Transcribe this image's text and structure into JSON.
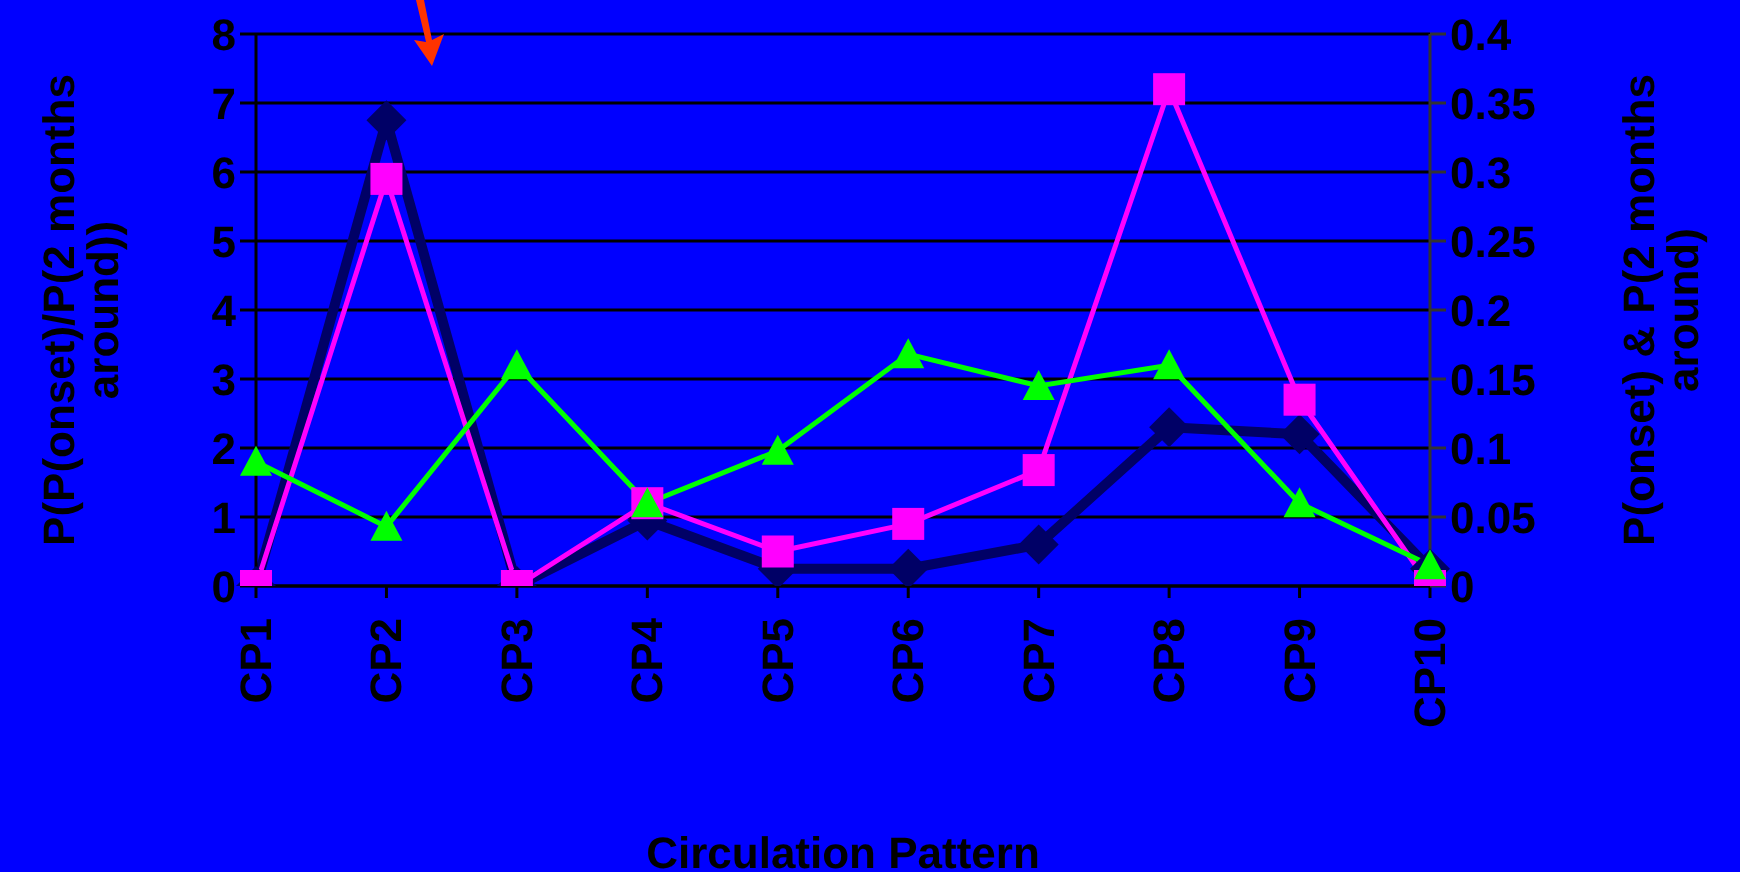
{
  "chart_data": {
    "type": "line",
    "xlabel": "Circulation Pattern",
    "ylabel": "P(P(onset)/P(2 months around))",
    "y2label": "P(onset) & P(2 months around)",
    "categories": [
      "CP1",
      "CP2",
      "CP3",
      "CP4",
      "CP5",
      "CP6",
      "CP7",
      "CP8",
      "CP9",
      "CP10"
    ],
    "series": [
      {
        "color": "#000066",
        "marker": "diamond",
        "values": [
          0,
          6.75,
          0,
          0.95,
          0.25,
          0.25,
          0.6,
          2.3,
          2.2,
          0.25
        ]
      },
      {
        "color": "#ff00ff",
        "marker": "square",
        "axis": "y2",
        "values": [
          0,
          0.295,
          0,
          0.06,
          0.025,
          0.045,
          0.084,
          0.36,
          0.135,
          0
        ]
      },
      {
        "color": "#00ff00",
        "marker": "triangle",
        "axis": "y2",
        "values": [
          0.09,
          0.043,
          0.16,
          0.06,
          0.098,
          0.168,
          0.145,
          0.16,
          0.06,
          0.015
        ]
      }
    ],
    "ylim": [
      0,
      8
    ],
    "yticks": [
      0,
      1,
      2,
      3,
      4,
      5,
      6,
      7,
      8
    ],
    "y2lim": [
      0,
      0.4
    ],
    "y2ticks": [
      0,
      0.05,
      0.1,
      0.15,
      0.2,
      0.25,
      0.3,
      0.35,
      0.4
    ],
    "grid": "y",
    "legend": false
  }
}
